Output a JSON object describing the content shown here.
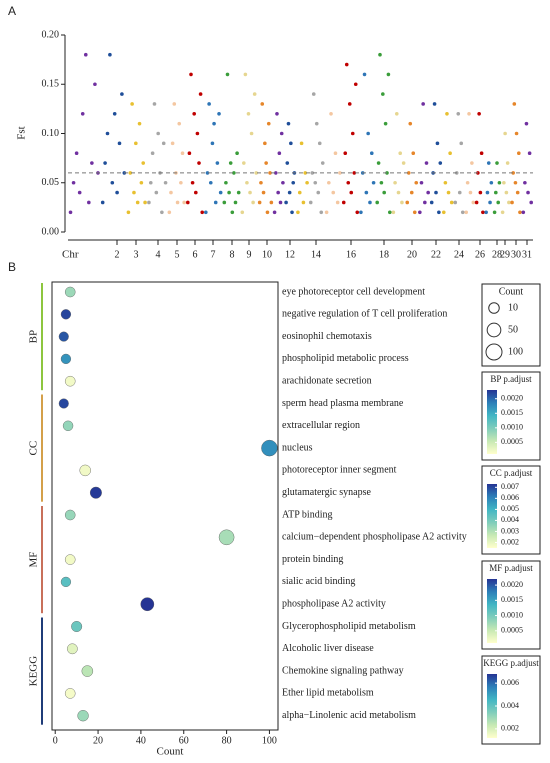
{
  "chart_data": [
    {
      "type": "manhattan",
      "panel": "A",
      "ylabel": "Fst",
      "xlabel": "Chr",
      "ylim": [
        0,
        0.2
      ],
      "yticks": [
        {
          "value": 0,
          "label": "0.00"
        },
        0.05,
        {
          "value": 0.1,
          "label": "0.10"
        },
        0.15,
        {
          "value": 0.2,
          "label": "0.20"
        }
      ],
      "threshold": 0.06,
      "categories": [
        null,
        "2",
        "3",
        "4",
        "5",
        "6",
        "7",
        "8",
        "9",
        "10",
        null,
        "12",
        null,
        "14",
        null,
        "16",
        null,
        "18",
        null,
        "20",
        null,
        "22",
        null,
        "24",
        null,
        "26",
        null,
        "28",
        "29",
        "30",
        "31"
      ],
      "colors": [
        "#7030a0",
        "#1f4e99",
        "#e8c030",
        "#a6a6a6",
        "#f4c7a1",
        "#c00000",
        "#2e75b6",
        "#3a9d3a",
        "#e6d690",
        "#e6862a",
        "#7030a0",
        "#1f4e99",
        "#e8c030",
        "#a6a6a6",
        "#f4c7a1",
        "#c00000",
        "#2e75b6",
        "#3a9d3a",
        "#e6d690",
        "#e6862a",
        "#7030a0",
        "#1f4e99",
        "#e8c030",
        "#a6a6a6",
        "#f4c7a1",
        "#c00000",
        "#2e75b6",
        "#3a9d3a",
        "#e6d690",
        "#e6862a",
        "#7030a0"
      ],
      "values": [
        [
          0.02,
          0.05,
          0.08,
          0.04,
          0.12,
          0.18,
          0.03,
          0.07,
          0.15,
          0.06
        ],
        [
          0.03,
          0.07,
          0.1,
          0.18,
          0.05,
          0.12,
          0.04,
          0.09,
          0.14,
          0.06
        ],
        [
          0.02,
          0.06,
          0.13,
          0.04,
          0.09,
          0.03,
          0.11,
          0.05,
          0.07,
          0.03
        ],
        [
          0.03,
          0.05,
          0.08,
          0.13,
          0.04,
          0.1,
          0.06,
          0.02,
          0.09,
          0.05
        ],
        [
          0.02,
          0.04,
          0.09,
          0.13,
          0.06,
          0.03,
          0.11,
          0.05,
          0.08,
          0.03
        ],
        [
          0.03,
          0.08,
          0.16,
          0.05,
          0.12,
          0.04,
          0.1,
          0.07,
          0.14,
          0.02
        ],
        [
          0.02,
          0.06,
          0.13,
          0.05,
          0.09,
          0.11,
          0.03,
          0.07,
          0.12,
          0.04
        ],
        [
          0.03,
          0.05,
          0.16,
          0.04,
          0.07,
          0.02,
          0.06,
          0.03,
          0.08,
          0.04
        ],
        [
          0.02,
          0.07,
          0.16,
          0.05,
          0.12,
          0.04,
          0.1,
          0.03,
          0.14,
          0.06
        ],
        [
          0.03,
          0.05,
          0.13,
          0.04,
          0.09,
          0.07,
          0.02,
          0.11,
          0.06,
          0.03
        ],
        [
          0.02,
          0.06,
          0.12,
          0.04,
          0.08,
          0.03,
          0.1,
          0.05
        ],
        [
          0.03,
          0.07,
          0.11,
          0.04,
          0.09,
          0.02,
          0.05,
          0.06
        ],
        [
          0.02,
          0.04,
          0.09,
          0.03,
          0.06,
          0.05
        ],
        [
          0.03,
          0.06,
          0.14,
          0.05,
          0.11,
          0.04,
          0.09,
          0.02,
          0.07
        ],
        [
          0.02,
          0.05,
          0.12,
          0.04,
          0.08,
          0.03,
          0.06
        ],
        [
          0.03,
          0.08,
          0.17,
          0.05,
          0.13,
          0.04,
          0.1,
          0.06,
          0.15,
          0.02
        ],
        [
          0.02,
          0.06,
          0.16,
          0.04,
          0.1,
          0.03,
          0.08,
          0.05
        ],
        [
          0.03,
          0.07,
          0.18,
          0.05,
          0.14,
          0.04,
          0.11,
          0.06,
          0.16,
          0.02
        ],
        [
          0.02,
          0.05,
          0.12,
          0.04,
          0.08,
          0.03,
          0.07
        ],
        [
          0.03,
          0.06,
          0.11,
          0.04,
          0.08,
          0.02,
          0.05
        ],
        [
          0.02,
          0.05,
          0.13,
          0.03,
          0.07,
          0.04
        ],
        [
          0.03,
          0.06,
          0.13,
          0.04,
          0.09,
          0.02,
          0.07
        ],
        [
          0.02,
          0.05,
          0.12,
          0.04,
          0.08,
          0.03
        ],
        [
          0.03,
          0.06,
          0.12,
          0.04,
          0.09,
          0.02
        ],
        [
          0.02,
          0.05,
          0.12,
          0.04,
          0.07,
          0.03
        ],
        [
          0.03,
          0.06,
          0.12,
          0.04,
          0.08,
          0.02
        ],
        [
          0.02,
          0.04,
          0.07,
          0.03,
          0.05
        ],
        [
          0.02,
          0.04,
          0.07,
          0.03,
          0.05
        ],
        [
          0.02,
          0.05,
          0.1,
          0.04,
          0.07,
          0.03
        ],
        [
          0.03,
          0.06,
          0.13,
          0.05,
          0.1,
          0.04,
          0.08,
          0.02
        ],
        [
          0.02,
          0.05,
          0.11,
          0.04,
          0.08,
          0.03
        ]
      ]
    },
    {
      "type": "dot",
      "panel": "B",
      "xlabel": "Count",
      "xlim": [
        -1.5,
        104
      ],
      "xticks": [
        0,
        20,
        40,
        60,
        80,
        100
      ],
      "size_legend": {
        "title": "Count",
        "values": [
          10,
          50,
          100
        ]
      },
      "colormap": [
        "#ffffcc",
        "#c7e9b4",
        "#7fcdbb",
        "#41b6c4",
        "#2c7fb8",
        "#253494"
      ],
      "groups": [
        {
          "name": "BP",
          "color": "#e38a8a",
          "bar_color": "#8dc63f",
          "label_color": "#c9a04b",
          "terms": [
            "eye photoreceptor cell development",
            "negative regulation of T cell proliferation",
            "eosinophil chemotaxis",
            "phospholipid metabolic process",
            "arachidonate secretion"
          ],
          "counts": [
            7,
            5,
            4,
            5,
            7
          ],
          "padjust": [
            0.0008,
            0.0022,
            0.0021,
            0.0017,
            0.0002
          ],
          "colorbar": {
            "title": "BP p.adjust",
            "lim": [
              0.0001,
              0.0023
            ],
            "ticks": [
              {
                "value": 0.002,
                "label": "0.0020"
              },
              0.0015,
              {
                "value": 0.001,
                "label": "0.0010"
              },
              0.0005
            ]
          }
        },
        {
          "name": "CC",
          "color": "#d4a04a",
          "bar_color": "#d4a04a",
          "label_color": "#c9a04b",
          "terms": [
            "sperm head plasma membrane",
            "extracellular region",
            "nucleus",
            "photoreceptor inner segment",
            "glutamatergic synapse"
          ],
          "counts": [
            4,
            6,
            100,
            14,
            19
          ],
          "padjust": [
            0.007,
            0.0035,
            0.0058,
            0.0018,
            0.0072
          ],
          "colorbar": {
            "title": "CC p.adjust",
            "lim": [
              0.0015,
              0.0073
            ],
            "ticks": [
              0.007,
              0.006,
              0.005,
              0.004,
              0.003,
              0.002
            ]
          }
        },
        {
          "name": "MF",
          "color": "#5fb0a0",
          "bar_color": "#c8705a",
          "label_color": "#d0704a",
          "terms": [
            "ATP binding",
            "calcium−dependent phospholipase A2 activity",
            "protein binding",
            "sialic acid binding",
            "phospholipase A2 activity"
          ],
          "counts": [
            7,
            80,
            7,
            5,
            43
          ],
          "padjust": [
            0.0008,
            0.0007,
            0.0002,
            0.0012,
            0.0022
          ],
          "colorbar": {
            "title": "MF p.adjust",
            "lim": [
              0.0001,
              0.0022
            ],
            "ticks": [
              {
                "value": 0.002,
                "label": "0.0020"
              },
              0.0015,
              {
                "value": 0.001,
                "label": "0.0010"
              },
              0.0005
            ]
          }
        },
        {
          "name": "KEGG",
          "color": "#1f3c78",
          "bar_color": "#1f3c78",
          "label_color": "#1f4e8c",
          "terms": [
            "Glycerophospholipid metabolism",
            "Alcoholic liver disease",
            "Chemokine signaling pathway",
            "Ether lipid metabolism",
            "alpha−Linolenic acid metabolism"
          ],
          "counts": [
            10,
            8,
            15,
            7,
            13
          ],
          "padjust": [
            0.0038,
            0.0018,
            0.0025,
            0.0014,
            0.003
          ],
          "colorbar": {
            "title": "KEGG p.adjust",
            "lim": [
              0.0012,
              0.0068
            ],
            "ticks": [
              0.006,
              0.004,
              0.002
            ]
          }
        }
      ]
    }
  ]
}
